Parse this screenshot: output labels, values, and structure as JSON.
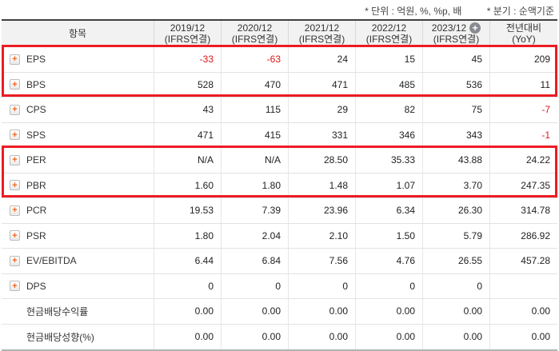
{
  "notes": {
    "unit": "* 단위 : 억원, %, %p, 배",
    "period": "* 분기 : 순액기준"
  },
  "table": {
    "item_header": "항목",
    "columns": [
      {
        "line1": "2019/12",
        "line2": "(IFRS연결)",
        "has_plus_icon": false
      },
      {
        "line1": "2020/12",
        "line2": "(IFRS연결)",
        "has_plus_icon": false
      },
      {
        "line1": "2021/12",
        "line2": "(IFRS연결)",
        "has_plus_icon": false
      },
      {
        "line1": "2022/12",
        "line2": "(IFRS연결)",
        "has_plus_icon": false
      },
      {
        "line1": "2023/12",
        "line2": "(IFRS연결)",
        "has_plus_icon": true
      },
      {
        "line1": "전년대비",
        "line2": "(YoY)",
        "has_plus_icon": false
      }
    ],
    "rows": [
      {
        "label": "EPS",
        "expandable": true,
        "highlight": "eps-bps",
        "values": [
          "-33",
          "-63",
          "24",
          "15",
          "45",
          "209"
        ]
      },
      {
        "label": "BPS",
        "expandable": true,
        "highlight": "eps-bps",
        "values": [
          "528",
          "470",
          "471",
          "485",
          "536",
          "11"
        ]
      },
      {
        "label": "CPS",
        "expandable": true,
        "highlight": null,
        "values": [
          "43",
          "115",
          "29",
          "82",
          "75",
          "-7"
        ]
      },
      {
        "label": "SPS",
        "expandable": true,
        "highlight": null,
        "values": [
          "471",
          "415",
          "331",
          "346",
          "343",
          "-1"
        ]
      },
      {
        "label": "PER",
        "expandable": true,
        "highlight": "per-pbr",
        "values": [
          "N/A",
          "N/A",
          "28.50",
          "35.33",
          "43.88",
          "24.22"
        ]
      },
      {
        "label": "PBR",
        "expandable": true,
        "highlight": "per-pbr",
        "values": [
          "1.60",
          "1.80",
          "1.48",
          "1.07",
          "3.70",
          "247.35"
        ]
      },
      {
        "label": "PCR",
        "expandable": true,
        "highlight": null,
        "values": [
          "19.53",
          "7.39",
          "23.96",
          "6.34",
          "26.30",
          "314.78"
        ]
      },
      {
        "label": "PSR",
        "expandable": true,
        "highlight": null,
        "values": [
          "1.80",
          "2.04",
          "2.10",
          "1.50",
          "5.79",
          "286.92"
        ]
      },
      {
        "label": "EV/EBITDA",
        "expandable": true,
        "highlight": null,
        "values": [
          "6.44",
          "6.84",
          "7.56",
          "4.76",
          "26.55",
          "457.28"
        ]
      },
      {
        "label": "DPS",
        "expandable": true,
        "highlight": null,
        "values": [
          "0",
          "0",
          "0",
          "0",
          "0",
          ""
        ]
      },
      {
        "label": "현금배당수익률",
        "expandable": false,
        "highlight": null,
        "values": [
          "0.00",
          "0.00",
          "0.00",
          "0.00",
          "0.00",
          "0.00"
        ]
      },
      {
        "label": "현금배당성향(%)",
        "expandable": false,
        "highlight": null,
        "values": [
          "0.00",
          "0.00",
          "0.00",
          "0.00",
          "0.00",
          "0.00"
        ]
      }
    ]
  },
  "icons": {
    "row_expand": "plus-icon",
    "header_expand": "circle-plus-icon",
    "plus_glyph": "+"
  },
  "colors": {
    "negative_value": "#e01616",
    "highlight_border": "#ec1c24",
    "plus_icon": "#f26419",
    "header_bg": "#f2f2f2",
    "table_top_border": "#404040"
  }
}
